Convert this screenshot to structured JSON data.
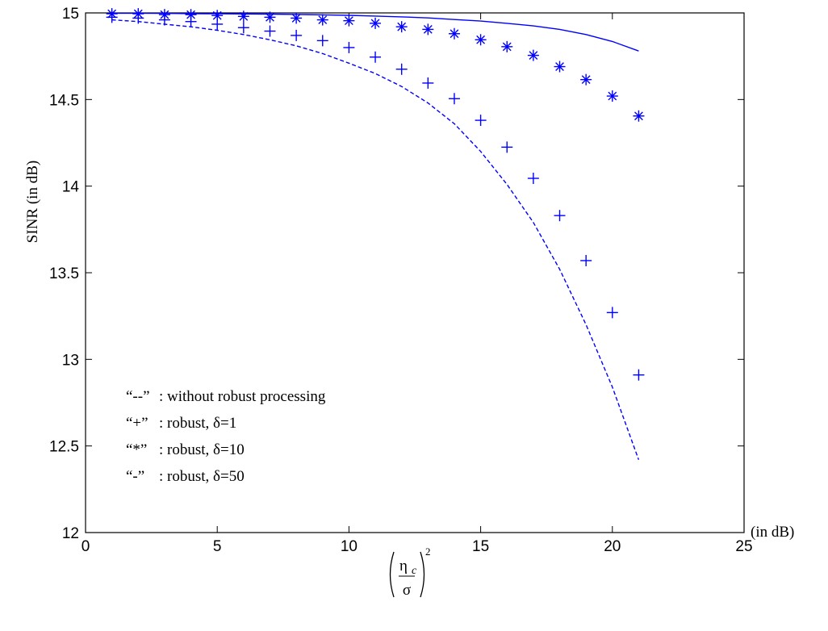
{
  "chart_data": {
    "type": "line",
    "xlim": [
      0,
      25
    ],
    "ylim": [
      12,
      15
    ],
    "x_ticks": [
      0,
      5,
      10,
      15,
      20,
      25
    ],
    "y_ticks": [
      12,
      12.5,
      13,
      13.5,
      14,
      14.5,
      15
    ],
    "x_tick_labels": [
      "0",
      "5",
      "10",
      "15",
      "20",
      "25"
    ],
    "y_tick_labels": [
      "12",
      "12.5",
      "13",
      "13.5",
      "14",
      "14.5",
      "15"
    ],
    "ylabel": "SINR (in dB)",
    "xunit": "(in dB)",
    "xlabel_formula": {
      "numerator": "η",
      "subscript": "c",
      "denominator": "σ",
      "exponent": "2"
    },
    "grid": false,
    "x": [
      1,
      2,
      3,
      4,
      5,
      6,
      7,
      8,
      9,
      10,
      11,
      12,
      13,
      14,
      15,
      16,
      17,
      18,
      19,
      20,
      21
    ],
    "series": [
      {
        "style": "dashed",
        "color": "#0000ff",
        "values": [
          14.96,
          14.95,
          14.935,
          14.92,
          14.9,
          14.875,
          14.845,
          14.81,
          14.765,
          14.71,
          14.65,
          14.575,
          14.48,
          14.36,
          14.2,
          14.01,
          13.79,
          13.52,
          13.2,
          12.84,
          12.42
        ]
      },
      {
        "style": "plus",
        "color": "#0000ff",
        "values": [
          14.975,
          14.97,
          14.96,
          14.95,
          14.935,
          14.915,
          14.895,
          14.87,
          14.84,
          14.8,
          14.745,
          14.675,
          14.595,
          14.505,
          14.38,
          14.225,
          14.045,
          13.83,
          13.57,
          13.27,
          12.91
        ]
      },
      {
        "style": "star",
        "color": "#0000ff",
        "values": [
          14.995,
          14.995,
          14.99,
          14.99,
          14.985,
          14.98,
          14.975,
          14.97,
          14.96,
          14.955,
          14.94,
          14.92,
          14.905,
          14.88,
          14.845,
          14.805,
          14.755,
          14.69,
          14.615,
          14.52,
          14.405
        ]
      },
      {
        "style": "solid",
        "color": "#0000ff",
        "values": [
          14.998,
          14.998,
          14.997,
          14.996,
          14.995,
          14.994,
          14.993,
          14.991,
          14.989,
          14.986,
          14.982,
          14.977,
          14.971,
          14.962,
          14.953,
          14.94,
          14.925,
          14.905,
          14.875,
          14.835,
          14.78
        ]
      }
    ],
    "legend": [
      {
        "symbol": "“--”",
        "text": ": without robust processing"
      },
      {
        "symbol": "“+”",
        "text": ": robust, δ=1"
      },
      {
        "symbol": "“*”",
        "text": ": robust, δ=10"
      },
      {
        "symbol": "“-”",
        "text": ": robust, δ=50"
      }
    ],
    "legend_position": "bottom-left"
  }
}
